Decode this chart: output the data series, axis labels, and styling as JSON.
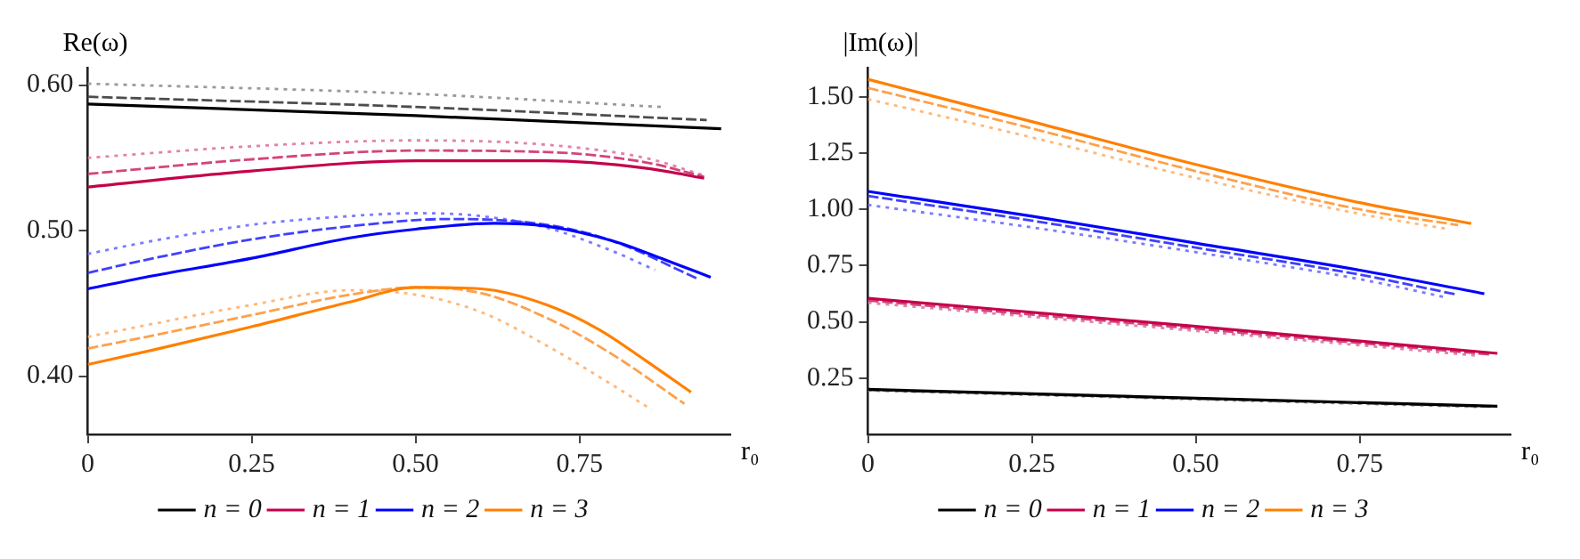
{
  "chart_data": [
    {
      "type": "line",
      "ylabel": "Re(ω)",
      "xlabel": "r₀",
      "xlim": [
        0,
        0.98
      ],
      "ylim": [
        0.36,
        0.612
      ],
      "xticks": [
        0,
        0.25,
        {
          "value": 0.5,
          "label": "0.50"
        },
        0.75
      ],
      "yticks": [
        {
          "value": 0.4,
          "label": "0.40"
        },
        {
          "value": 0.5,
          "label": "0.50"
        },
        {
          "value": 0.6,
          "label": "0.60"
        }
      ],
      "legend": "bottom",
      "marker": "none",
      "series": [
        {
          "name": "n = 0",
          "color": "#000000",
          "line_style": "solid",
          "x": [
            0,
            0.5,
            0.966
          ],
          "values": [
            0.587,
            0.579,
            0.57
          ]
        },
        {
          "color": "#4d4d4d",
          "line_style": "dashed",
          "x": [
            0,
            0.5,
            0.944
          ],
          "values": [
            0.592,
            0.585,
            0.576
          ]
        },
        {
          "color": "#9a9a9a",
          "line_style": "dotted",
          "x": [
            0,
            0.5,
            0.874
          ],
          "values": [
            0.601,
            0.594,
            0.585
          ]
        },
        {
          "name": "n = 1",
          "color": "#c5004a",
          "line_style": "solid",
          "x": [
            0,
            0.25,
            0.5,
            0.7,
            0.85,
            0.94
          ],
          "values": [
            0.53,
            0.541,
            0.548,
            0.548,
            0.543,
            0.536
          ]
        },
        {
          "color": "#d3457c",
          "line_style": "dashed",
          "x": [
            0,
            0.25,
            0.5,
            0.7,
            0.85,
            0.94
          ],
          "values": [
            0.539,
            0.549,
            0.555,
            0.554,
            0.547,
            0.537
          ]
        },
        {
          "color": "#e283a8",
          "line_style": "dotted",
          "x": [
            0,
            0.25,
            0.5,
            0.7,
            0.85,
            0.94
          ],
          "values": [
            0.55,
            0.558,
            0.562,
            0.559,
            0.55,
            0.538
          ]
        },
        {
          "name": "n = 2",
          "color": "#0000ff",
          "line_style": "solid",
          "x": [
            0,
            0.1,
            0.25,
            0.4,
            0.5,
            0.62,
            0.7,
            0.8,
            0.88,
            0.95
          ],
          "values": [
            0.46,
            0.469,
            0.481,
            0.495,
            0.501,
            0.505,
            0.503,
            0.493,
            0.48,
            0.468
          ]
        },
        {
          "color": "#4040ff",
          "line_style": "dashed",
          "x": [
            0,
            0.1,
            0.25,
            0.4,
            0.55,
            0.7,
            0.8,
            0.93
          ],
          "values": [
            0.471,
            0.481,
            0.494,
            0.503,
            0.508,
            0.504,
            0.493,
            0.467
          ]
        },
        {
          "color": "#7b7bff",
          "line_style": "dotted",
          "x": [
            0,
            0.1,
            0.25,
            0.4,
            0.5,
            0.6,
            0.7,
            0.8,
            0.865
          ],
          "values": [
            0.484,
            0.493,
            0.504,
            0.51,
            0.512,
            0.51,
            0.502,
            0.486,
            0.473
          ]
        },
        {
          "name": "n = 3",
          "color": "#ff8000",
          "line_style": "solid",
          "x": [
            0,
            0.1,
            0.25,
            0.4,
            0.5,
            0.6,
            0.7,
            0.78,
            0.85,
            0.92
          ],
          "values": [
            0.408,
            0.418,
            0.434,
            0.451,
            0.461,
            0.46,
            0.449,
            0.432,
            0.411,
            0.389
          ]
        },
        {
          "color": "#ffa04a",
          "line_style": "dashed",
          "x": [
            0,
            0.1,
            0.25,
            0.4,
            0.5,
            0.6,
            0.7,
            0.8,
            0.91
          ],
          "values": [
            0.419,
            0.428,
            0.442,
            0.456,
            0.461,
            0.457,
            0.44,
            0.415,
            0.381
          ]
        },
        {
          "color": "#ffb87a",
          "line_style": "dotted",
          "x": [
            0,
            0.1,
            0.25,
            0.4,
            0.5,
            0.6,
            0.7,
            0.8,
            0.86
          ],
          "values": [
            0.427,
            0.436,
            0.449,
            0.459,
            0.456,
            0.444,
            0.421,
            0.394,
            0.377
          ]
        }
      ]
    },
    {
      "type": "line",
      "ylabel": "|Im(ω)|",
      "xlabel": "r₀",
      "xlim": [
        0,
        0.98
      ],
      "ylim": [
        0,
        1.63
      ],
      "xticks": [
        0,
        0.25,
        {
          "value": 0.5,
          "label": "0.50"
        },
        0.75
      ],
      "yticks": [
        0.25,
        {
          "value": 0.5,
          "label": "0.50"
        },
        0.75,
        {
          "value": 1,
          "label": "1.00"
        },
        1.25,
        {
          "value": 1.5,
          "label": "1.50"
        }
      ],
      "legend": "bottom",
      "marker": "none",
      "series": [
        {
          "name": "n = 0",
          "color": "#000000",
          "line_style": "solid",
          "x": [
            0,
            0.96
          ],
          "values": [
            0.2,
            0.125
          ]
        },
        {
          "color": "#4d4d4d",
          "line_style": "dashed",
          "x": [
            0,
            0.95
          ],
          "values": [
            0.198,
            0.124
          ]
        },
        {
          "color": "#9a9a9a",
          "line_style": "dotted",
          "x": [
            0,
            0.93
          ],
          "values": [
            0.195,
            0.122
          ]
        },
        {
          "name": "n = 1",
          "color": "#c5004a",
          "line_style": "solid",
          "x": [
            0,
            0.5,
            0.96
          ],
          "values": [
            0.605,
            0.48,
            0.36
          ]
        },
        {
          "color": "#d3457c",
          "line_style": "dashed",
          "x": [
            0,
            0.5,
            0.95
          ],
          "values": [
            0.595,
            0.47,
            0.355
          ]
        },
        {
          "color": "#e283a8",
          "line_style": "dotted",
          "x": [
            0,
            0.5,
            0.93
          ],
          "values": [
            0.585,
            0.46,
            0.35
          ]
        },
        {
          "name": "n = 2",
          "color": "#0000ff",
          "line_style": "solid",
          "x": [
            0,
            0.25,
            0.5,
            0.75,
            0.94
          ],
          "values": [
            1.08,
            0.97,
            0.85,
            0.73,
            0.625
          ]
        },
        {
          "color": "#4040ff",
          "line_style": "dashed",
          "x": [
            0,
            0.25,
            0.5,
            0.75,
            0.9
          ],
          "values": [
            1.06,
            0.95,
            0.83,
            0.71,
            0.62
          ]
        },
        {
          "color": "#7b7bff",
          "line_style": "dotted",
          "x": [
            0,
            0.25,
            0.5,
            0.75,
            0.88
          ],
          "values": [
            1.02,
            0.92,
            0.81,
            0.69,
            0.61
          ]
        },
        {
          "name": "n = 3",
          "color": "#ff8000",
          "line_style": "solid",
          "x": [
            0,
            0.25,
            0.5,
            0.75,
            0.92
          ],
          "values": [
            1.578,
            1.39,
            1.2,
            1.03,
            0.937
          ]
        },
        {
          "color": "#ffa04a",
          "line_style": "dashed",
          "x": [
            0,
            0.25,
            0.5,
            0.75,
            0.9
          ],
          "values": [
            1.54,
            1.36,
            1.17,
            1.0,
            0.93
          ]
        },
        {
          "color": "#ffb87a",
          "line_style": "dotted",
          "x": [
            0,
            0.25,
            0.5,
            0.75,
            0.88
          ],
          "values": [
            1.49,
            1.32,
            1.14,
            0.98,
            0.915
          ]
        }
      ]
    }
  ]
}
